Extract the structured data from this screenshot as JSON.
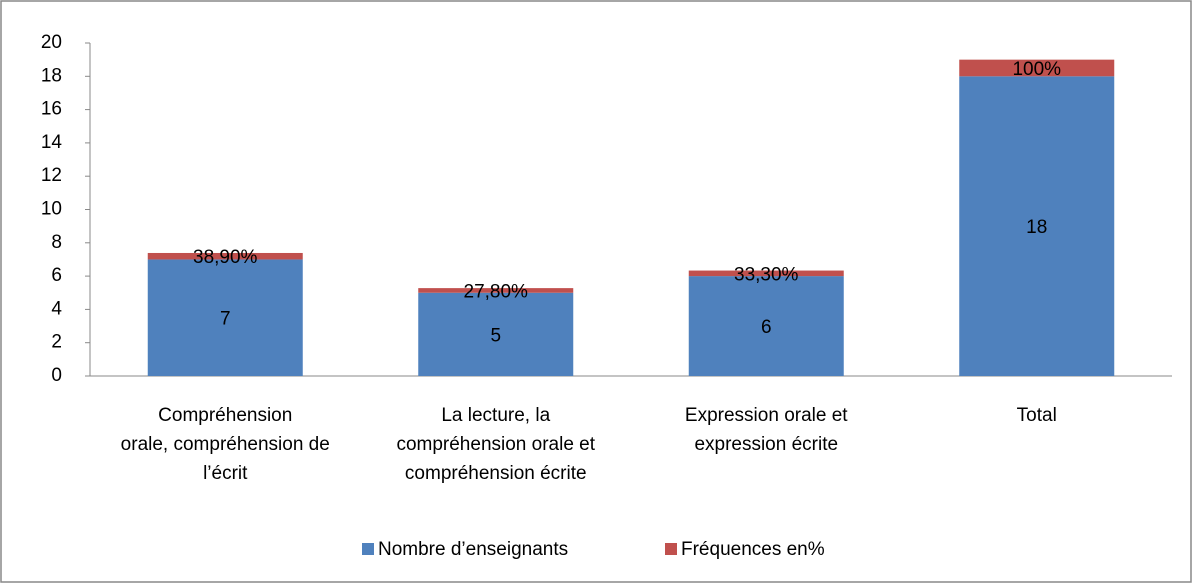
{
  "chart_data": {
    "type": "stacked_bar",
    "categories": [
      "Compréhension\norale, compréhension de\nl’écrit",
      "La lecture, la\ncompréhension orale et\ncompréhension écrite",
      "Expression orale et\nexpression écrite",
      "Total"
    ],
    "series": [
      {
        "name": "Nombre d’enseignants",
        "color": "#4f81bd",
        "values": [
          7,
          5,
          6,
          18
        ]
      },
      {
        "name": "Fréquences en%",
        "color": "#c0504d",
        "values": [
          0.389,
          0.278,
          0.333,
          1.0
        ],
        "value_labels": [
          "38,90%",
          "27,80%",
          "33,30%",
          "100%"
        ]
      }
    ],
    "ylim": [
      0,
      20
    ],
    "yticks": [
      0,
      2,
      4,
      6,
      8,
      10,
      12,
      14,
      16,
      18,
      20
    ],
    "grid": false,
    "legend": "bottom"
  }
}
